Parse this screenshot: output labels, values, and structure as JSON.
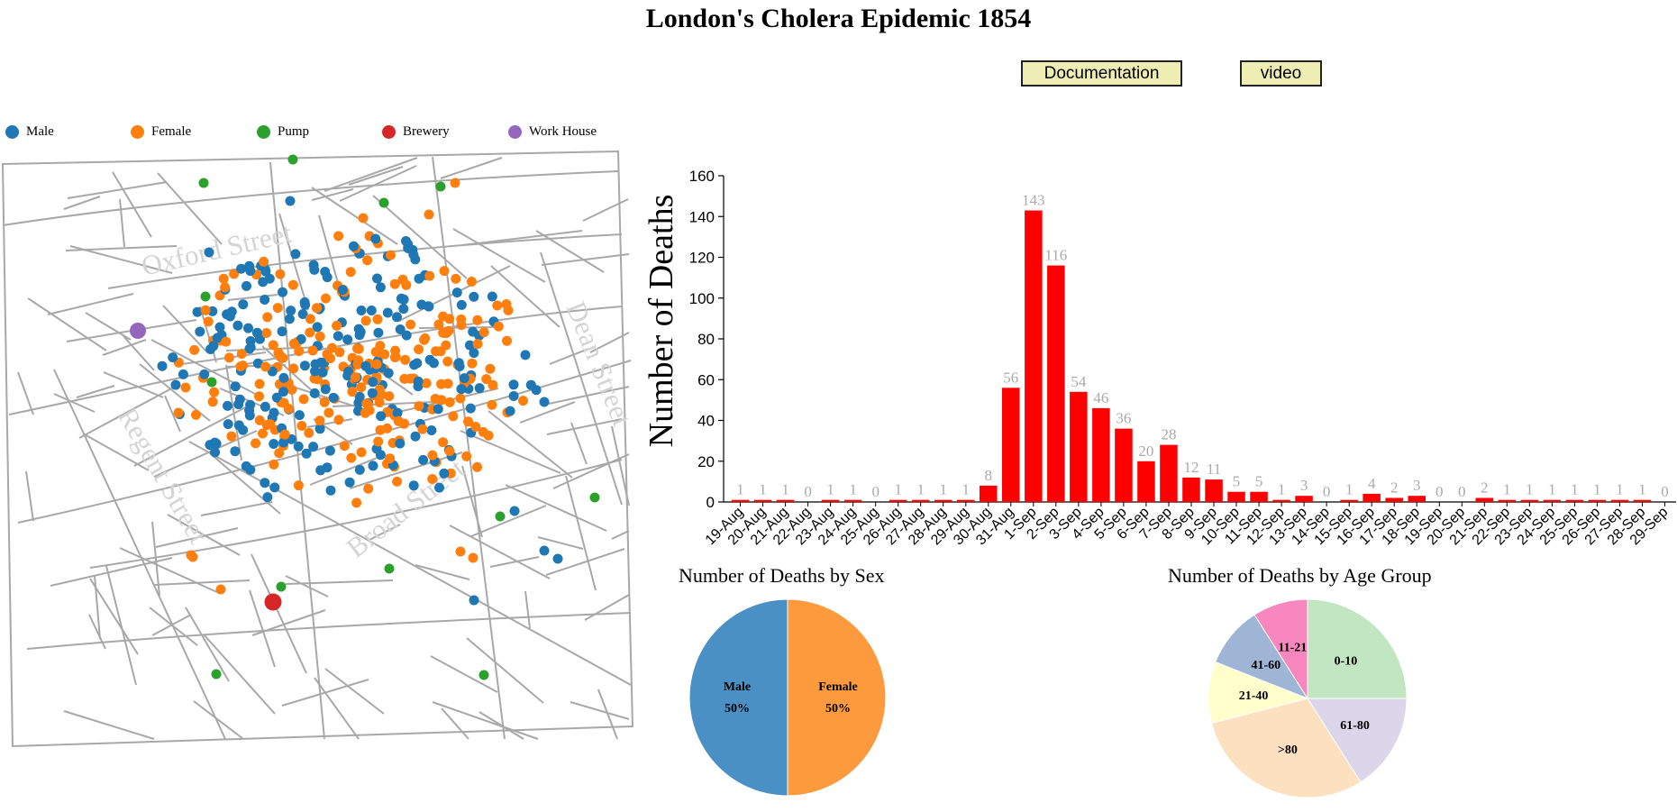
{
  "title": "London's Cholera Epidemic 1854",
  "buttons": {
    "documentation": "Documentation",
    "video": "video"
  },
  "legend": [
    {
      "label": "Male",
      "color": "#1f77b4"
    },
    {
      "label": "Female",
      "color": "#ff7f0e"
    },
    {
      "label": "Pump",
      "color": "#2ca02c"
    },
    {
      "label": "Brewery",
      "color": "#d62728"
    },
    {
      "label": "Work House",
      "color": "#9467bd"
    }
  ],
  "map": {
    "street_labels": [
      "Oxford Street",
      "Dean Street",
      "Regent Street",
      "Broad Street"
    ]
  },
  "chart_data": [
    {
      "type": "bar",
      "categories": [
        "19-Aug",
        "20-Aug",
        "21-Aug",
        "22-Aug",
        "23-Aug",
        "24-Aug",
        "25-Aug",
        "26-Aug",
        "27-Aug",
        "28-Aug",
        "29-Aug",
        "30-Aug",
        "31-Aug",
        "1-Sep",
        "2-Sep",
        "3-Sep",
        "4-Sep",
        "5-Sep",
        "6-Sep",
        "7-Sep",
        "8-Sep",
        "9-Sep",
        "10-Sep",
        "11-Sep",
        "12-Sep",
        "13-Sep",
        "14-Sep",
        "15-Sep",
        "16-Sep",
        "17-Sep",
        "18-Sep",
        "19-Sep",
        "20-Sep",
        "21-Sep",
        "22-Sep",
        "23-Sep",
        "24-Sep",
        "25-Sep",
        "26-Sep",
        "27-Sep",
        "28-Sep",
        "29-Sep"
      ],
      "values": [
        1,
        1,
        1,
        0,
        1,
        1,
        0,
        1,
        1,
        1,
        1,
        8,
        56,
        143,
        116,
        54,
        46,
        36,
        20,
        28,
        12,
        11,
        5,
        5,
        1,
        3,
        0,
        1,
        4,
        2,
        3,
        0,
        0,
        2,
        1,
        1,
        1,
        1,
        1,
        1,
        1,
        0
      ],
      "ylabel": "Number of Deaths",
      "ylim": [
        0,
        160
      ],
      "yticks": [
        "0",
        "20",
        "40",
        "60",
        "80",
        "100",
        "120",
        "140",
        "160"
      ],
      "color": "#ff0000",
      "label_color": "#aaaaaa"
    },
    {
      "type": "pie",
      "title": "Number of Deaths by Sex",
      "slices": [
        {
          "label": "Male",
          "percent_label": "50%",
          "value": 50,
          "color": "#4a90c4"
        },
        {
          "label": "Female",
          "percent_label": "50%",
          "value": 50,
          "color": "#fd9a3e"
        }
      ]
    },
    {
      "type": "pie",
      "title": "Number of Deaths by Age Group",
      "slices": [
        {
          "label": "0-10",
          "value": 25,
          "color": "#c2e5c2"
        },
        {
          "label": "61-80",
          "value": 16,
          "color": "#dcd6ea"
        },
        {
          "label": ">80",
          "value": 30,
          "color": "#fde0c0"
        },
        {
          "label": "21-40",
          "value": 10,
          "color": "#ffffcc"
        },
        {
          "label": "41-60",
          "value": 10,
          "color": "#9fb5d6"
        },
        {
          "label": "11-21",
          "value": 9,
          "color": "#f787be"
        }
      ]
    }
  ]
}
